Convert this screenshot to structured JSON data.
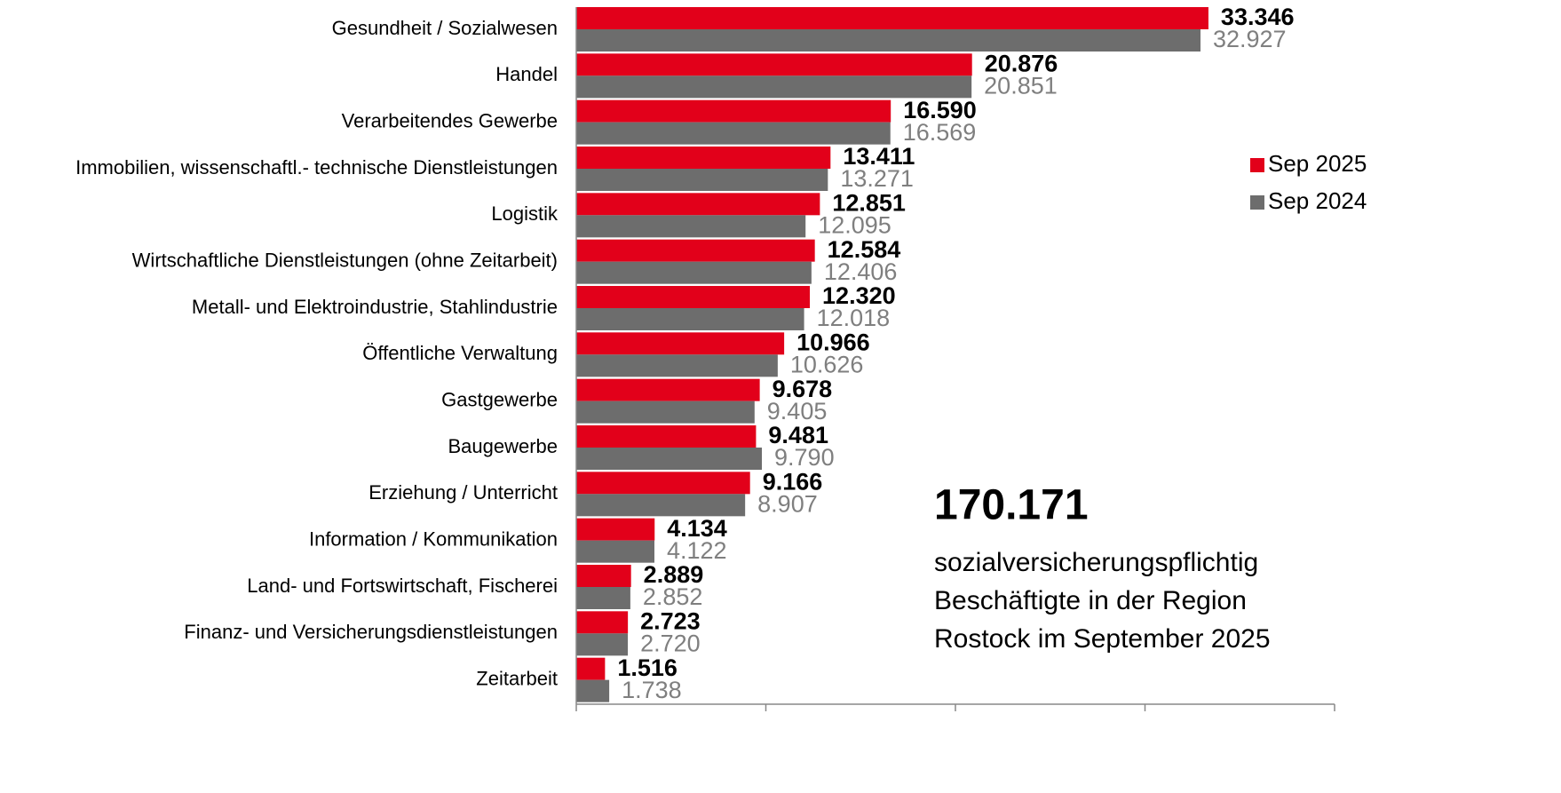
{
  "chart_data": {
    "type": "hbar",
    "categories": [
      "Gesundheit / Sozialwesen",
      "Handel",
      "Verarbeitendes Gewerbe",
      "Immobilien, wissenschaftl.- technische Dienstleistungen",
      "Logistik",
      "Wirtschaftliche Dienstleistungen (ohne Zeitarbeit)",
      "Metall- und Elektroindustrie, Stahlindustrie",
      "Öffentliche Verwaltung",
      "Gastgewerbe",
      "Baugewerbe",
      "Erziehung / Unterricht",
      "Information / Kommunikation",
      "Land- und Fortswirtschaft, Fischerei",
      "Finanz- und Versicherungsdienstleistungen",
      "Zeitarbeit"
    ],
    "series": [
      {
        "name": "Sep 2025",
        "color": "#e2001a",
        "values": [
          33346,
          20876,
          16590,
          13411,
          12851,
          12584,
          12320,
          10966,
          9678,
          9481,
          9166,
          4134,
          2889,
          2723,
          1516
        ],
        "value_labels": [
          "33.346",
          "20.876",
          "16.590",
          "13.411",
          "12.851",
          "12.584",
          "12.320",
          "10.966",
          "9.678",
          "9.481",
          "9.166",
          "4.134",
          "2.889",
          "2.723",
          "1.516"
        ]
      },
      {
        "name": "Sep 2024",
        "color": "#6d6d6d",
        "values": [
          32927,
          20851,
          16569,
          13271,
          12095,
          12406,
          12018,
          10626,
          9405,
          9790,
          8907,
          4122,
          2852,
          2720,
          1738
        ],
        "value_labels": [
          "32.927",
          "20.851",
          "16.569",
          "13.271",
          "12.095",
          "12.406",
          "12.018",
          "10.626",
          "9.405",
          "9.790",
          "8.907",
          "4.122",
          "2.852",
          "2.720",
          "1.738"
        ]
      }
    ],
    "xlim": [
      0,
      40000
    ],
    "xticks": [
      0,
      10000,
      20000,
      30000,
      40000
    ],
    "legend": "right",
    "annotation": {
      "headline": "170.171",
      "lines": [
        "sozialversicherungspflichtig",
        "Beschäftigte in der Region",
        "Rostock im September 2025"
      ]
    }
  }
}
